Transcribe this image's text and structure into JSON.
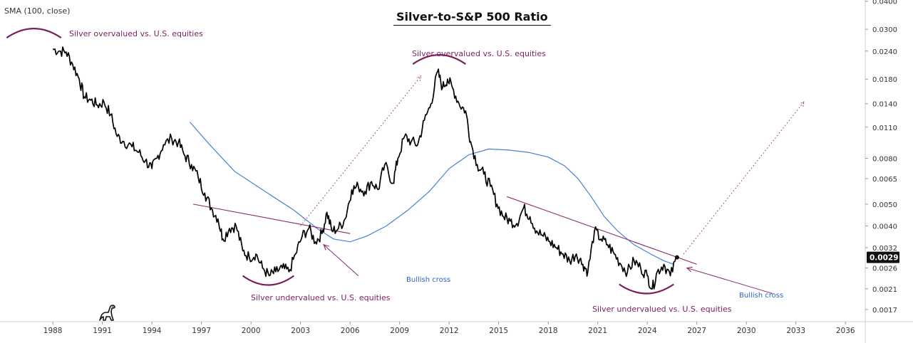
{
  "indicator_label": "SMA (100, close)",
  "chart_data": {
    "type": "line",
    "title": "Silver-to-S&P 500 Ratio",
    "y_scale": "log",
    "ylim": [
      0.0015,
      0.0405
    ],
    "xlim": [
      1984.8,
      2037.2
    ],
    "x_ticks": [
      "1988",
      "1991",
      "1994",
      "1997",
      "2000",
      "2003",
      "2006",
      "2009",
      "2012",
      "2015",
      "2018",
      "2021",
      "2024",
      "2027",
      "2030",
      "2033",
      "2036"
    ],
    "y_ticks": [
      "0.0400",
      "0.0300",
      "0.0240",
      "0.0180",
      "0.0140",
      "0.0110",
      "0.0080",
      "0.0065",
      "0.0050",
      "0.0040",
      "0.0032",
      "0.0026",
      "0.0021",
      "0.0017"
    ],
    "last_value_label": "0.0029",
    "series": [
      {
        "name": "Silver/S&P 500 ratio",
        "color": "#000000",
        "points": [
          [
            1988.0,
            0.0245
          ],
          [
            1988.4,
            0.024
          ],
          [
            1988.8,
            0.0238
          ],
          [
            1989.2,
            0.021
          ],
          [
            1989.6,
            0.018
          ],
          [
            1989.9,
            0.015
          ],
          [
            1990.3,
            0.0145
          ],
          [
            1990.7,
            0.0138
          ],
          [
            1991.1,
            0.0142
          ],
          [
            1991.5,
            0.0125
          ],
          [
            1991.9,
            0.01
          ],
          [
            1992.3,
            0.0095
          ],
          [
            1992.8,
            0.009
          ],
          [
            1993.2,
            0.0085
          ],
          [
            1993.6,
            0.0078
          ],
          [
            1994.0,
            0.0072
          ],
          [
            1994.3,
            0.008
          ],
          [
            1994.7,
            0.0092
          ],
          [
            1995.2,
            0.0098
          ],
          [
            1995.6,
            0.0094
          ],
          [
            1996.0,
            0.0082
          ],
          [
            1996.4,
            0.0075
          ],
          [
            1996.8,
            0.0066
          ],
          [
            1997.2,
            0.0056
          ],
          [
            1997.6,
            0.0048
          ],
          [
            1998.0,
            0.0043
          ],
          [
            1998.3,
            0.0035
          ],
          [
            1998.7,
            0.0039
          ],
          [
            1999.1,
            0.004
          ],
          [
            1999.5,
            0.0031
          ],
          [
            1999.9,
            0.0029
          ],
          [
            2000.3,
            0.003
          ],
          [
            2000.7,
            0.0026
          ],
          [
            2001.1,
            0.0024
          ],
          [
            2001.5,
            0.0025
          ],
          [
            2001.9,
            0.0026
          ],
          [
            2002.3,
            0.0025
          ],
          [
            2002.7,
            0.003
          ],
          [
            2003.1,
            0.0036
          ],
          [
            2003.5,
            0.0039
          ],
          [
            2003.9,
            0.0034
          ],
          [
            2004.3,
            0.0037
          ],
          [
            2004.6,
            0.0046
          ],
          [
            2004.9,
            0.0038
          ],
          [
            2005.3,
            0.0039
          ],
          [
            2005.7,
            0.0043
          ],
          [
            2006.1,
            0.0058
          ],
          [
            2006.5,
            0.006
          ],
          [
            2006.9,
            0.0057
          ],
          [
            2007.3,
            0.0063
          ],
          [
            2007.7,
            0.0058
          ],
          [
            2008.1,
            0.0075
          ],
          [
            2008.6,
            0.0062
          ],
          [
            2008.9,
            0.008
          ],
          [
            2009.3,
            0.01
          ],
          [
            2009.7,
            0.0095
          ],
          [
            2010.1,
            0.0092
          ],
          [
            2010.5,
            0.0118
          ],
          [
            2010.9,
            0.014
          ],
          [
            2011.3,
            0.0195
          ],
          [
            2011.6,
            0.0165
          ],
          [
            2011.9,
            0.018
          ],
          [
            2012.2,
            0.0165
          ],
          [
            2012.6,
            0.014
          ],
          [
            2013.0,
            0.013
          ],
          [
            2013.3,
            0.0095
          ],
          [
            2013.7,
            0.0075
          ],
          [
            2014.1,
            0.0068
          ],
          [
            2014.5,
            0.006
          ],
          [
            2014.9,
            0.005
          ],
          [
            2015.3,
            0.0044
          ],
          [
            2015.7,
            0.0042
          ],
          [
            2016.1,
            0.0041
          ],
          [
            2016.5,
            0.0048
          ],
          [
            2016.9,
            0.0044
          ],
          [
            2017.3,
            0.0038
          ],
          [
            2017.7,
            0.0036
          ],
          [
            2018.1,
            0.0034
          ],
          [
            2018.5,
            0.0032
          ],
          [
            2018.9,
            0.003
          ],
          [
            2019.3,
            0.0028
          ],
          [
            2019.7,
            0.003
          ],
          [
            2020.1,
            0.0027
          ],
          [
            2020.4,
            0.0025
          ],
          [
            2020.8,
            0.0038
          ],
          [
            2021.2,
            0.0035
          ],
          [
            2021.6,
            0.0033
          ],
          [
            2022.0,
            0.003
          ],
          [
            2022.4,
            0.0027
          ],
          [
            2022.8,
            0.0025
          ],
          [
            2023.2,
            0.0028
          ],
          [
            2023.6,
            0.0026
          ],
          [
            2024.0,
            0.0024
          ],
          [
            2024.3,
            0.0021
          ],
          [
            2024.6,
            0.0025
          ],
          [
            2025.0,
            0.0027
          ],
          [
            2025.4,
            0.0024
          ],
          [
            2025.8,
            0.0029
          ]
        ]
      },
      {
        "name": "SMA (100, close)",
        "color": "#4a7fd4",
        "points": [
          [
            1996.3,
            0.0116
          ],
          [
            1997.5,
            0.0092
          ],
          [
            1999.0,
            0.007
          ],
          [
            2001.0,
            0.0056
          ],
          [
            2002.6,
            0.0047
          ],
          [
            2004.0,
            0.0039
          ],
          [
            2005.0,
            0.0035
          ],
          [
            2006.0,
            0.0034
          ],
          [
            2007.0,
            0.0036
          ],
          [
            2008.2,
            0.004
          ],
          [
            2009.5,
            0.0047
          ],
          [
            2010.8,
            0.0057
          ],
          [
            2012.0,
            0.0072
          ],
          [
            2013.2,
            0.0083
          ],
          [
            2014.4,
            0.0088
          ],
          [
            2015.6,
            0.0087
          ],
          [
            2016.8,
            0.0085
          ],
          [
            2018.0,
            0.0081
          ],
          [
            2019.0,
            0.0074
          ],
          [
            2019.8,
            0.0065
          ],
          [
            2020.6,
            0.0054
          ],
          [
            2021.4,
            0.0044
          ],
          [
            2022.2,
            0.0038
          ],
          [
            2023.2,
            0.0033
          ],
          [
            2024.2,
            0.003
          ],
          [
            2025.0,
            0.0028
          ],
          [
            2025.6,
            0.0027
          ]
        ]
      }
    ],
    "trendlines": [
      {
        "name": "resistance-line-1",
        "from": [
          1996.5,
          0.005
        ],
        "to": [
          2006.0,
          0.0037
        ]
      },
      {
        "name": "resistance-line-2",
        "from": [
          2015.5,
          0.0054
        ],
        "to": [
          2027.0,
          0.0027
        ]
      }
    ],
    "projections": [
      {
        "name": "projection-line-1",
        "from": [
          2003.0,
          0.004
        ],
        "to": [
          2010.3,
          0.0186
        ]
      },
      {
        "name": "projection-line-2",
        "from": [
          2026.2,
          0.003
        ],
        "to": [
          2033.5,
          0.0143
        ]
      }
    ],
    "arcs": [
      {
        "name": "arc-top-1988",
        "x0": 1985.2,
        "x1": 1988.5,
        "y_at": 0.0275,
        "direction": "up"
      },
      {
        "name": "arc-top-2011",
        "x0": 2009.8,
        "x1": 2013.0,
        "y_at": 0.021,
        "direction": "up"
      },
      {
        "name": "arc-bottom-2001",
        "x0": 1999.5,
        "x1": 2002.6,
        "y_at": 0.0024,
        "direction": "down"
      },
      {
        "name": "arc-bottom-2024",
        "x0": 2022.3,
        "x1": 2025.6,
        "y_at": 0.0022,
        "direction": "down"
      }
    ],
    "last_point": [
      2025.8,
      0.0029
    ],
    "annotations": [
      {
        "text": "Silver overvalued vs. U.S. equities",
        "type": "overvalued"
      },
      {
        "text": "Silver overvalued vs. U.S. equities",
        "type": "overvalued"
      },
      {
        "text": "Silver undervalued vs. U.S. equities",
        "type": "undervalued"
      },
      {
        "text": "Silver undervalued vs. U.S. equities",
        "type": "undervalued"
      },
      {
        "text": "Bullish cross",
        "type": "signal"
      },
      {
        "text": "Bullish cross",
        "type": "signal"
      }
    ]
  }
}
